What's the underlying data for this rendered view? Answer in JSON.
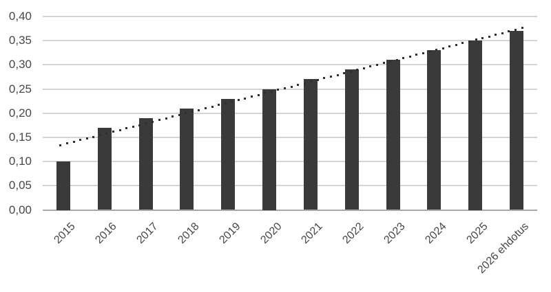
{
  "chart_data": {
    "type": "bar",
    "title": "",
    "xlabel": "",
    "ylabel": "",
    "categories": [
      "2015",
      "2016",
      "2017",
      "2018",
      "2019",
      "2020",
      "2021",
      "2022",
      "2023",
      "2024",
      "2025",
      "2026 ehdotus"
    ],
    "values": [
      0.1,
      0.17,
      0.19,
      0.21,
      0.23,
      0.25,
      0.27,
      0.29,
      0.31,
      0.33,
      0.35,
      0.37
    ],
    "ylim": [
      0,
      0.4
    ],
    "y_tick_step": 0.05,
    "y_tick_labels": [
      "0,40",
      "0,35",
      "0,30",
      "0,25",
      "0,20",
      "0,15",
      "0,10",
      "0,05",
      "0,00"
    ],
    "grid": true,
    "legend": false,
    "decimal_separator": ",",
    "bar_color": "#3a3a3a",
    "gridline_color": "#d4d4d4",
    "axis_line_color": "#a8a8a8",
    "text_color": "#474747",
    "trendline": {
      "type": "linear",
      "style": "dotted",
      "color": "#2f2f2f",
      "start_value": 0.134,
      "end_value": 0.376
    }
  }
}
